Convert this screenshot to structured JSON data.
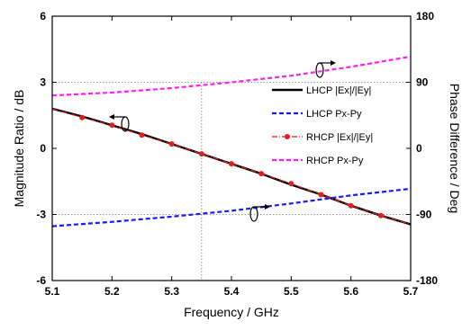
{
  "chart_data": {
    "type": "line",
    "xlabel": "Frequency / GHz",
    "ylabel_left": "Magnitude Ratio / dB",
    "ylabel_right": "Phase Difference / Deg",
    "xlim": [
      5.1,
      5.7
    ],
    "ylim_left": [
      -6,
      6
    ],
    "ylim_right": [
      -180,
      180
    ],
    "x_ticks": [
      "5.1",
      "5.2",
      "5.3",
      "5.4",
      "5.5",
      "5.6",
      "5.7"
    ],
    "y_left_ticks": [
      "6",
      "3",
      "0",
      "-3",
      "-6"
    ],
    "y_right_ticks": [
      "180",
      "90",
      "0",
      "-90",
      "-180"
    ],
    "grid": "dotted lines at y=±3 dB (±90°) and x=5.35",
    "legend_position": "right, upper-middle",
    "series": [
      {
        "name": "LHCP |Ex|/|Ey|",
        "axis": "left",
        "color": "#000000",
        "style": "solid",
        "x": [
          5.1,
          5.15,
          5.2,
          5.25,
          5.3,
          5.35,
          5.4,
          5.45,
          5.5,
          5.55,
          5.6,
          5.65,
          5.7
        ],
        "y": [
          1.8,
          1.45,
          1.05,
          0.65,
          0.2,
          -0.25,
          -0.7,
          -1.15,
          -1.65,
          -2.1,
          -2.6,
          -3.05,
          -3.45
        ]
      },
      {
        "name": "LHCP Px-Py",
        "axis": "right",
        "color": "#1a1aff",
        "style": "dashed",
        "x": [
          5.1,
          5.2,
          5.3,
          5.4,
          5.5,
          5.6,
          5.7
        ],
        "y": [
          -106,
          -100,
          -93,
          -85,
          -75,
          -64,
          -55
        ]
      },
      {
        "name": "RHCP |Ex|/|Ey|",
        "axis": "left",
        "color": "#e02020",
        "style": "dash-dot with dots",
        "x": [
          5.1,
          5.15,
          5.2,
          5.25,
          5.3,
          5.35,
          5.4,
          5.45,
          5.5,
          5.55,
          5.6,
          5.65,
          5.7
        ],
        "y": [
          1.8,
          1.4,
          1.05,
          0.6,
          0.2,
          -0.25,
          -0.7,
          -1.15,
          -1.6,
          -2.1,
          -2.6,
          -3.05,
          -3.45
        ]
      },
      {
        "name": "RHCP Px-Py",
        "axis": "right",
        "color": "#ff22ee",
        "style": "dashed",
        "x": [
          5.1,
          5.2,
          5.3,
          5.4,
          5.5,
          5.6,
          5.7
        ],
        "y": [
          72,
          76,
          82,
          90,
          99,
          111,
          125
        ]
      }
    ]
  }
}
